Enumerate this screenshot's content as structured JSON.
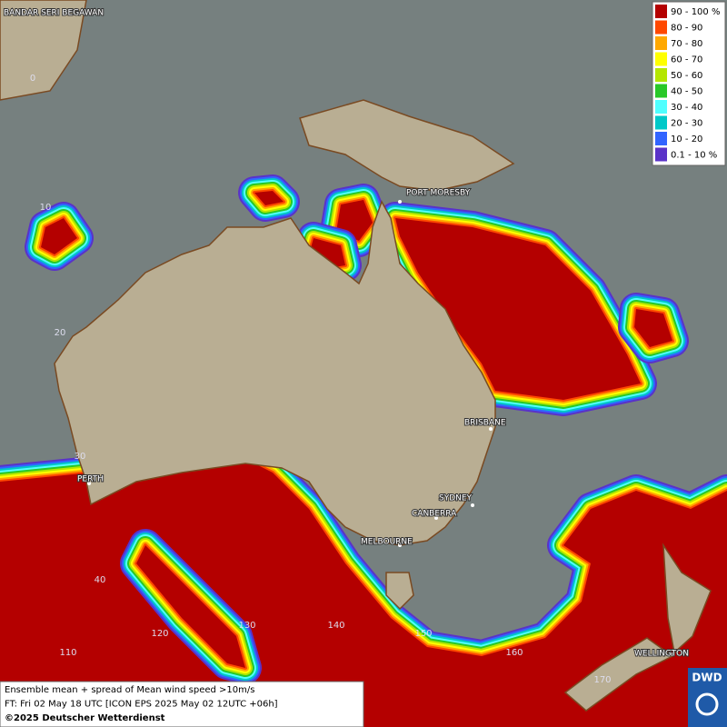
{
  "legend": {
    "items": [
      {
        "label": "90 - 100 %",
        "color": "#b40000"
      },
      {
        "label": "80 - 90",
        "color": "#ff4800"
      },
      {
        "label": "70 - 80",
        "color": "#ffa800"
      },
      {
        "label": "60 - 70",
        "color": "#ffff00"
      },
      {
        "label": "50 - 60",
        "color": "#b4e600"
      },
      {
        "label": "40 - 50",
        "color": "#28c828"
      },
      {
        "label": "30 - 40",
        "color": "#50ffff"
      },
      {
        "label": "20 - 30",
        "color": "#00c8c8"
      },
      {
        "label": "10 - 20",
        "color": "#3264ff"
      },
      {
        "label": "0.1 - 10 %",
        "color": "#5a32c8"
      }
    ]
  },
  "cities": [
    "BANDAR SERI BEGAWAN",
    "PORT MORESBY",
    "BRISBANE",
    "PERTH",
    "SYDNEY",
    "CANBERRA",
    "MELBOURNE",
    "WELLINGTON"
  ],
  "grid_labels": [
    "0",
    "10",
    "20",
    "30",
    "40",
    "110",
    "120",
    "130",
    "140",
    "150",
    "160",
    "170"
  ],
  "footer": {
    "lines": [
      "Ensemble mean + spread of Mean wind speed >10m/s",
      "FT: Fri 02 May 18 UTC [ICON EPS 2025 May 02 12UTC +06h]",
      "©2025 Deutscher Wetterdienst"
    ]
  },
  "logo": {
    "text": "DWD"
  }
}
